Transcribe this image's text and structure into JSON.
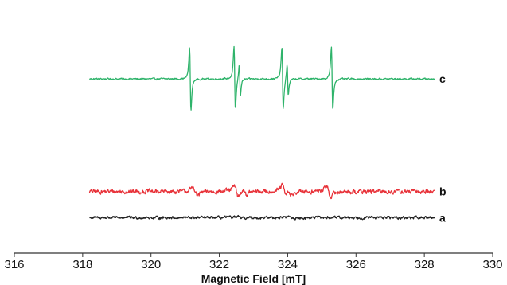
{
  "chart_data": {
    "type": "line",
    "title": "",
    "xlabel": "Magnetic Field [mT]",
    "ylabel": "",
    "xlim": [
      316,
      330
    ],
    "ylim": [
      -1.2,
      4.2
    ],
    "x_ticks": [
      "316",
      "318",
      "320",
      "322",
      "324",
      "326",
      "328",
      "330"
    ],
    "grid": false,
    "legend": "none",
    "x_range": [
      318.2,
      328.3
    ],
    "series": [
      {
        "name": "c",
        "color": "#2eb36a",
        "offset": 2.6,
        "noise": 0.015,
        "lines": [
          {
            "x": 321.15,
            "amp": 1.7,
            "width": 0.035
          },
          {
            "x": 322.45,
            "amp": 1.7,
            "width": 0.035
          },
          {
            "x": 322.6,
            "amp": 0.85,
            "width": 0.03
          },
          {
            "x": 323.85,
            "amp": 1.7,
            "width": 0.035
          },
          {
            "x": 324.0,
            "amp": 0.85,
            "width": 0.03
          },
          {
            "x": 325.3,
            "amp": 1.7,
            "width": 0.035
          }
        ]
      },
      {
        "name": "b",
        "color": "#e8333a",
        "offset": 0.0,
        "noise": 0.04,
        "lines": [
          {
            "x": 321.3,
            "amp": 0.22,
            "width": 0.1
          },
          {
            "x": 322.5,
            "amp": 0.28,
            "width": 0.1
          },
          {
            "x": 322.75,
            "amp": 0.15,
            "width": 0.08
          },
          {
            "x": 323.9,
            "amp": 0.3,
            "width": 0.1
          },
          {
            "x": 324.05,
            "amp": 0.2,
            "width": 0.08
          },
          {
            "x": 325.2,
            "amp": 0.28,
            "width": 0.1
          }
        ]
      },
      {
        "name": "a",
        "color": "#222222",
        "offset": -0.6,
        "noise": 0.025,
        "lines": [
          {
            "x": 322.6,
            "amp": 0.03,
            "width": 0.2
          },
          {
            "x": 324.1,
            "amp": 0.05,
            "width": 0.15
          }
        ]
      }
    ]
  }
}
